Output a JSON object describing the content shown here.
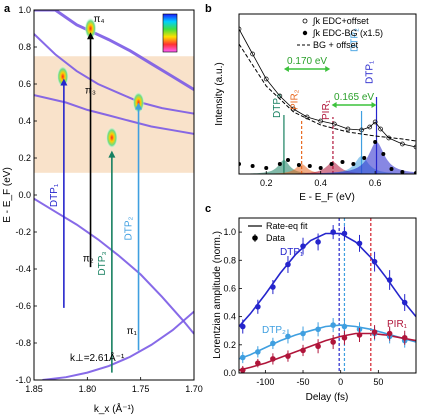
{
  "chart_data": [
    {
      "panel": "a",
      "type": "line",
      "xlabel": "k_x (Å⁻¹)",
      "ylabel": "E - E_F (eV)",
      "xlim": [
        -1.85,
        -1.7
      ],
      "ylim": [
        -1.0,
        1.0
      ],
      "x_ticks": [
        "1.85",
        "1.80",
        "1.75",
        "1.70"
      ],
      "y_ticks": [
        "-1.0",
        "-0.8",
        "-0.6",
        "-0.4",
        "-0.2",
        "0.0",
        "0.2",
        "0.4",
        "0.6",
        "0.8",
        "1.0"
      ],
      "annotation": "k⊥=2.61Å⁻¹",
      "bands": [
        {
          "name": "π1",
          "x": [
            -1.842,
            -1.82,
            -1.8,
            -1.78,
            -1.76,
            -1.74,
            -1.72,
            -1.7
          ],
          "y": [
            -1.0,
            -0.985,
            -0.96,
            -0.925,
            -0.875,
            -0.81,
            -0.73,
            -0.63
          ]
        },
        {
          "name": "π2",
          "x": [
            -1.85,
            -1.83,
            -1.81,
            -1.79,
            -1.77,
            -1.75,
            -1.73,
            -1.71,
            -1.7
          ],
          "y": [
            -0.02,
            -0.09,
            -0.16,
            -0.24,
            -0.33,
            -0.43,
            -0.55,
            -0.68,
            -0.75
          ]
        },
        {
          "name": "π3",
          "x": [
            -1.85,
            -1.83,
            -1.81,
            -1.79,
            -1.77,
            -1.75,
            -1.73,
            -1.71,
            -1.7
          ],
          "y": [
            0.87,
            0.76,
            0.67,
            0.6,
            0.55,
            0.5,
            0.47,
            0.45,
            0.44
          ]
        },
        {
          "name": "π4",
          "x": [
            -1.85,
            -1.83,
            -1.81,
            -1.795,
            -1.78,
            -1.76,
            -1.74,
            -1.72,
            -1.7
          ],
          "y": [
            1.0,
            1.0,
            0.92,
            0.88,
            0.84,
            0.78,
            0.71,
            0.64,
            0.57
          ]
        },
        {
          "name": "π4-edge",
          "x": [
            -1.85,
            -1.82,
            -1.8,
            -1.78,
            -1.76,
            -1.74,
            -1.72,
            -1.7
          ],
          "y": [
            0.54,
            0.5,
            0.46,
            0.43,
            0.4,
            0.37,
            0.35,
            0.33
          ]
        }
      ],
      "band_labels": [
        {
          "text": "π₄",
          "x": -1.797,
          "y": 0.935
        },
        {
          "text": "π₃",
          "x": -1.805,
          "y": 0.55
        },
        {
          "text": "π₂",
          "x": -1.807,
          "y": -0.36
        },
        {
          "text": "π₁",
          "x": -1.766,
          "y": -0.75
        }
      ],
      "shaded_region": {
        "ylim": [
          0.12,
          0.75
        ]
      },
      "transitions": [
        {
          "name": "DTP1",
          "label": "DTP₁",
          "x": -1.822,
          "from": -0.61,
          "to": 0.63,
          "color": "#2525cc"
        },
        {
          "name": "DTP3",
          "label": "DTP₃",
          "x": -1.777,
          "from": -0.96,
          "to": 0.24,
          "color": "#178060"
        },
        {
          "name": "DTP2",
          "label": "DTP₂",
          "x": -1.752,
          "from": -0.84,
          "to": 0.5,
          "color": "#3f9fe0"
        },
        {
          "name": "pi2-pi4",
          "label": "",
          "x": -1.797,
          "from": -0.39,
          "to": 0.88,
          "color": "#000000"
        }
      ],
      "hotspots": [
        {
          "x": -1.823,
          "y": 0.64
        },
        {
          "x": -1.797,
          "y": 0.9
        },
        {
          "x": -1.777,
          "y": 0.31
        },
        {
          "x": -1.752,
          "y": 0.5
        }
      ]
    },
    {
      "panel": "b",
      "type": "line",
      "xlabel": "E - E_F (eV)",
      "ylabel": "Intensity (a.u.)",
      "xlim": [
        0.1,
        0.75
      ],
      "x_ticks": [
        "0.2",
        "0.4",
        "0.6"
      ],
      "legend": {
        "placement": "top-right",
        "entries": [
          "∫k EDC+offset",
          "∫k EDC-BG (x1.5)",
          "BG + offset"
        ]
      },
      "series": [
        {
          "name": "∫k EDC+offset",
          "x": [
            0.1,
            0.15,
            0.2,
            0.25,
            0.3,
            0.35,
            0.4,
            0.45,
            0.5,
            0.55,
            0.58,
            0.6,
            0.62,
            0.65,
            0.7,
            0.75
          ],
          "y": [
            1.45,
            1.2,
            0.95,
            0.78,
            0.65,
            0.57,
            0.53,
            0.5,
            0.45,
            0.44,
            0.47,
            0.52,
            0.45,
            0.36,
            0.3,
            0.27
          ]
        },
        {
          "name": "∫k EDC-BG (x1.5)",
          "x": [
            0.1,
            0.15,
            0.2,
            0.25,
            0.28,
            0.32,
            0.36,
            0.4,
            0.44,
            0.48,
            0.52,
            0.56,
            0.6,
            0.63,
            0.66,
            0.7,
            0.75
          ],
          "y": [
            0.1,
            0.08,
            0.06,
            0.1,
            0.14,
            0.09,
            0.08,
            0.06,
            0.1,
            0.12,
            0.1,
            0.16,
            0.32,
            0.2,
            0.05,
            0.02,
            0.01
          ]
        },
        {
          "name": "BG + offset",
          "x": [
            0.1,
            0.2,
            0.3,
            0.4,
            0.5,
            0.6,
            0.7,
            0.75
          ],
          "y": [
            1.3,
            0.88,
            0.62,
            0.49,
            0.42,
            0.38,
            0.35,
            0.33
          ]
        }
      ],
      "peaks": [
        {
          "name": "DTP3",
          "label": "DTP₃",
          "center": 0.265,
          "color": "#178060"
        },
        {
          "name": "PIR2",
          "label": "PIR₂",
          "center": 0.33,
          "color": "#e86820"
        },
        {
          "name": "PIR1",
          "label": "PIR₁",
          "center": 0.445,
          "color": "#b0153a"
        },
        {
          "name": "DTP2",
          "label": "DTP₂",
          "center": 0.55,
          "color": "#3f9fe0"
        },
        {
          "name": "DTP1",
          "label": "DTP₁",
          "center": 0.605,
          "color": "#2525cc"
        }
      ],
      "gaps": [
        {
          "label": "0.170 eV",
          "from": 0.265,
          "to": 0.435
        },
        {
          "label": "0.165 eV",
          "from": 0.44,
          "to": 0.605
        }
      ]
    },
    {
      "panel": "c",
      "type": "scatter",
      "xlabel": "Delay (fs)",
      "ylabel": "Lorentzian amplitude (norm.)",
      "xlim": [
        -135,
        100
      ],
      "ylim": [
        0.0,
        1.1
      ],
      "x_ticks": [
        "-100",
        "-50",
        "0",
        "50"
      ],
      "y_ticks": [
        "0.0",
        "0.2",
        "0.4",
        "0.6",
        "0.8",
        "1.0"
      ],
      "legend": {
        "placement": "top-right",
        "entries": [
          "Rate-eq fit",
          "Data"
        ]
      },
      "vlines": [
        {
          "x": -2,
          "color": "#2525cc"
        },
        {
          "x": 5,
          "color": "#3f9fe0"
        },
        {
          "x": 40,
          "color": "#d21e2a"
        }
      ],
      "series": [
        {
          "name": "DTP₁",
          "color": "#2525cc",
          "x": [
            -130,
            -110,
            -90,
            -70,
            -50,
            -30,
            -10,
            5,
            25,
            45,
            65,
            85
          ],
          "y": [
            0.33,
            0.47,
            0.61,
            0.77,
            0.9,
            0.93,
            1.0,
            0.99,
            0.92,
            0.79,
            0.66,
            0.5
          ],
          "err": [
            0.05,
            0.05,
            0.05,
            0.06,
            0.06,
            0.06,
            0.05,
            0.05,
            0.06,
            0.07,
            0.07,
            0.06
          ]
        },
        {
          "name": "DTP₂",
          "color": "#3f9fe0",
          "x": [
            -130,
            -110,
            -90,
            -70,
            -50,
            -30,
            -10,
            5,
            25,
            45,
            65,
            85
          ],
          "y": [
            0.11,
            0.15,
            0.21,
            0.26,
            0.28,
            0.31,
            0.34,
            0.33,
            0.31,
            0.28,
            0.26,
            0.23
          ],
          "err": [
            0.04,
            0.04,
            0.04,
            0.05,
            0.05,
            0.05,
            0.05,
            0.05,
            0.05,
            0.05,
            0.05,
            0.05
          ]
        },
        {
          "name": "PIR₁",
          "color": "#b0153a",
          "x": [
            -130,
            -110,
            -90,
            -70,
            -50,
            -30,
            -10,
            5,
            25,
            45,
            65,
            85
          ],
          "y": [
            0.02,
            0.07,
            0.1,
            0.12,
            0.16,
            0.19,
            0.22,
            0.25,
            0.27,
            0.29,
            0.28,
            0.25
          ],
          "err": [
            0.03,
            0.03,
            0.04,
            0.04,
            0.04,
            0.05,
            0.05,
            0.05,
            0.05,
            0.05,
            0.05,
            0.05
          ]
        }
      ],
      "fits": [
        {
          "series": "DTP₁",
          "x": [
            -135,
            -120,
            -100,
            -80,
            -60,
            -40,
            -20,
            0,
            20,
            40,
            60,
            80,
            100
          ],
          "y": [
            0.33,
            0.42,
            0.56,
            0.71,
            0.84,
            0.94,
            0.99,
            0.99,
            0.93,
            0.82,
            0.68,
            0.53,
            0.4
          ]
        },
        {
          "series": "DTP₂",
          "x": [
            -135,
            -120,
            -100,
            -80,
            -60,
            -40,
            -20,
            0,
            20,
            40,
            60,
            80,
            100
          ],
          "y": [
            0.1,
            0.13,
            0.18,
            0.23,
            0.27,
            0.3,
            0.33,
            0.34,
            0.33,
            0.31,
            0.28,
            0.25,
            0.22
          ]
        },
        {
          "series": "PIR₁",
          "x": [
            -135,
            -120,
            -100,
            -80,
            -60,
            -40,
            -20,
            0,
            20,
            40,
            60,
            80,
            100
          ],
          "y": [
            0.02,
            0.04,
            0.07,
            0.11,
            0.15,
            0.19,
            0.23,
            0.26,
            0.28,
            0.28,
            0.27,
            0.25,
            0.23
          ]
        }
      ]
    }
  ]
}
